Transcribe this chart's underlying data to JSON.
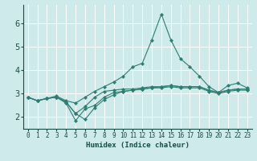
{
  "xlabel": "Humidex (Indice chaleur)",
  "ylabel": "",
  "bg_color": "#ceeaea",
  "grid_color": "#ffffff",
  "line_color": "#2e7d72",
  "xlim": [
    -0.5,
    23.5
  ],
  "ylim": [
    1.5,
    6.8
  ],
  "yticks": [
    2,
    3,
    4,
    5,
    6
  ],
  "xticks": [
    0,
    1,
    2,
    3,
    4,
    5,
    6,
    7,
    8,
    9,
    10,
    11,
    12,
    13,
    14,
    15,
    16,
    17,
    18,
    19,
    20,
    21,
    22,
    23
  ],
  "lines": [
    {
      "x": [
        0,
        1,
        2,
        3,
        4,
        5,
        6,
        7,
        8,
        9,
        10,
        11,
        12,
        13,
        14,
        15,
        16,
        17,
        18,
        19,
        20,
        21,
        22,
        23
      ],
      "y": [
        2.85,
        2.7,
        2.8,
        2.85,
        2.65,
        2.15,
        2.45,
        2.85,
        3.1,
        3.15,
        3.2,
        3.2,
        3.25,
        3.3,
        3.3,
        3.35,
        3.3,
        3.3,
        3.3,
        3.15,
        3.05,
        3.15,
        3.2,
        3.2
      ]
    },
    {
      "x": [
        0,
        1,
        2,
        3,
        4,
        5,
        6,
        7,
        8,
        9,
        10,
        11,
        12,
        13,
        14,
        15,
        16,
        17,
        18,
        19,
        20,
        21,
        22,
        23
      ],
      "y": [
        2.85,
        2.7,
        2.8,
        2.85,
        2.6,
        1.85,
        2.35,
        2.5,
        2.85,
        3.05,
        3.1,
        3.15,
        3.2,
        3.25,
        3.3,
        3.35,
        3.3,
        3.3,
        3.3,
        3.15,
        3.05,
        3.15,
        3.2,
        3.2
      ]
    },
    {
      "x": [
        0,
        1,
        2,
        3,
        4,
        5,
        6,
        7,
        8,
        9,
        10,
        11,
        12,
        13,
        14,
        15,
        16,
        17,
        18,
        19,
        20,
        21,
        22,
        23
      ],
      "y": [
        2.85,
        2.7,
        2.8,
        2.9,
        2.7,
        2.6,
        2.85,
        3.1,
        3.3,
        3.5,
        3.75,
        4.15,
        4.3,
        5.3,
        6.4,
        5.3,
        4.5,
        4.15,
        3.75,
        3.3,
        3.05,
        3.35,
        3.45,
        3.25
      ]
    },
    {
      "x": [
        0,
        1,
        2,
        3,
        4,
        5,
        6,
        7,
        8,
        9,
        10,
        11,
        12,
        13,
        14,
        15,
        16,
        17,
        18,
        19,
        20,
        21,
        22,
        23
      ],
      "y": [
        2.85,
        2.7,
        2.8,
        2.85,
        2.65,
        2.15,
        1.9,
        2.4,
        2.75,
        2.95,
        3.1,
        3.15,
        3.2,
        3.25,
        3.25,
        3.3,
        3.25,
        3.25,
        3.25,
        3.1,
        3.0,
        3.1,
        3.15,
        3.15
      ]
    }
  ]
}
